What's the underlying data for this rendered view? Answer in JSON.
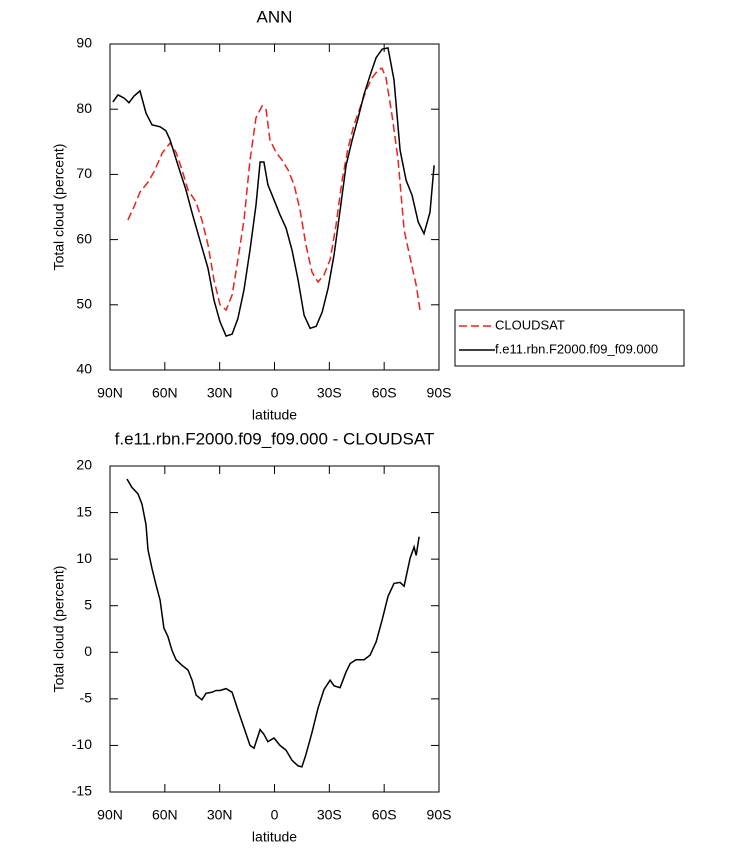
{
  "chart_data": [
    {
      "type": "line",
      "title": "ANN",
      "xlabel": "latitude",
      "ylabel": "Total cloud (percent)",
      "xlim": [
        90,
        -90
      ],
      "ylim": [
        40,
        90
      ],
      "xticks": [
        {
          "value": 90,
          "label": "90N"
        },
        {
          "value": 60,
          "label": "60N"
        },
        {
          "value": 30,
          "label": "30N"
        },
        0,
        {
          "value": -30,
          "label": "30S"
        },
        {
          "value": -60,
          "label": "60S"
        },
        {
          "value": -90,
          "label": "90S"
        }
      ],
      "yticks": [
        40,
        50,
        60,
        70,
        80,
        90
      ],
      "legend": "outside-right",
      "series": [
        {
          "name": "CLOUDSAT",
          "color": "#e8241c",
          "line_style": "dashed",
          "x": [
            80.2,
            76.9,
            73.6,
            69.2,
            65.9,
            61.4,
            57.2,
            53.9,
            50.6,
            47.3,
            43.0,
            39.7,
            36.4,
            33.1,
            29.8,
            26.5,
            23.2,
            20.0,
            16.7,
            13.4,
            10.1,
            6.8,
            4.6,
            2.5,
            -0.8,
            -4.1,
            -7.4,
            -10.7,
            -14.0,
            -17.2,
            -20.5,
            -23.8,
            -27.1,
            -30.4,
            -33.7,
            -37.0,
            -40.2,
            -43.5,
            -46.8,
            -50.1,
            -53.4,
            -56.6,
            -58.8,
            -61.0,
            -64.3,
            -67.6,
            -70.9,
            -74.2,
            -77.5,
            -79.6
          ],
          "values": [
            63.0,
            65.0,
            67.3,
            68.8,
            70.4,
            73.3,
            74.8,
            73.4,
            70.7,
            67.6,
            65.8,
            63.0,
            59.2,
            53.8,
            50.0,
            49.2,
            51.5,
            56.9,
            63.0,
            72.2,
            78.7,
            80.5,
            79.9,
            75.3,
            73.4,
            72.2,
            70.7,
            68.4,
            64.5,
            59.2,
            55.0,
            53.5,
            54.6,
            56.9,
            62.3,
            69.1,
            74.0,
            77.6,
            80.2,
            82.9,
            84.8,
            86.0,
            86.3,
            84.8,
            79.1,
            72.2,
            61.5,
            57.2,
            53.0,
            49.2
          ]
        },
        {
          "name": "f.e11.rbn.F2000.f09_f09.000",
          "color": "#000000",
          "line_style": "solid",
          "x": [
            88.4,
            85.6,
            82.3,
            79.6,
            76.9,
            73.6,
            70.3,
            67.0,
            62.6,
            59.4,
            57.2,
            52.8,
            48.4,
            45.1,
            40.8,
            36.4,
            33.1,
            29.8,
            26.5,
            23.2,
            20.0,
            16.7,
            13.4,
            10.1,
            7.9,
            5.8,
            3.6,
            0.3,
            -3.0,
            -6.3,
            -9.6,
            -12.9,
            -16.2,
            -19.5,
            -22.8,
            -26.1,
            -29.4,
            -32.6,
            -35.9,
            -39.2,
            -42.5,
            -45.8,
            -49.0,
            -52.3,
            -55.6,
            -58.9,
            -62.1,
            -65.4,
            -68.7,
            -72.0,
            -75.3,
            -78.6,
            -81.8,
            -85.1,
            -87.3
          ],
          "values": [
            81.1,
            82.2,
            81.7,
            81.0,
            82.0,
            82.8,
            79.4,
            77.6,
            77.3,
            76.7,
            75.3,
            71.4,
            67.6,
            64.1,
            59.9,
            55.6,
            50.7,
            47.4,
            45.2,
            45.5,
            47.9,
            52.3,
            58.4,
            65.3,
            71.9,
            71.9,
            68.4,
            66.1,
            63.8,
            61.8,
            58.4,
            53.8,
            48.4,
            46.4,
            46.7,
            48.9,
            52.6,
            57.7,
            64.5,
            71.4,
            75.3,
            78.7,
            82.3,
            85.2,
            87.9,
            89.2,
            89.4,
            84.5,
            73.7,
            69.1,
            66.8,
            62.7,
            60.9,
            64.2,
            71.4
          ]
        }
      ]
    },
    {
      "type": "line",
      "title": "f.e11.rbn.F2000.f09_f09.000 - CLOUDSAT",
      "xlabel": "latitude",
      "ylabel": "Total cloud (percent)",
      "xlim": [
        90,
        -90
      ],
      "ylim": [
        -15,
        20
      ],
      "xticks": [
        {
          "value": 90,
          "label": "90N"
        },
        {
          "value": 60,
          "label": "60N"
        },
        {
          "value": 30,
          "label": "30N"
        },
        0,
        {
          "value": -30,
          "label": "30S"
        },
        {
          "value": -60,
          "label": "60S"
        },
        {
          "value": -90,
          "label": "90S"
        }
      ],
      "yticks": [
        -15,
        -10,
        -5,
        0,
        5,
        10,
        15,
        20
      ],
      "color": "#000000",
      "x": [
        80.7,
        78.0,
        74.7,
        72.5,
        70.3,
        69.2,
        67.0,
        64.8,
        62.6,
        60.5,
        58.3,
        56.1,
        53.9,
        50.6,
        47.3,
        45.1,
        42.9,
        39.7,
        37.5,
        34.2,
        32.0,
        29.8,
        26.5,
        23.2,
        20.0,
        16.7,
        13.4,
        11.2,
        7.9,
        5.8,
        3.6,
        0.3,
        -3.0,
        -6.3,
        -9.6,
        -12.9,
        -15.0,
        -17.2,
        -20.5,
        -23.8,
        -27.1,
        -30.4,
        -32.6,
        -35.9,
        -39.2,
        -41.4,
        -44.6,
        -49.0,
        -52.3,
        -55.6,
        -58.9,
        -62.1,
        -65.4,
        -68.7,
        -70.9,
        -74.2,
        -76.4,
        -77.5,
        -79.1
      ],
      "values": [
        18.6,
        17.7,
        17.0,
        15.9,
        13.7,
        11.0,
        9.0,
        7.2,
        5.6,
        2.6,
        1.7,
        0.2,
        -0.8,
        -1.4,
        -1.9,
        -3.0,
        -4.6,
        -5.1,
        -4.4,
        -4.3,
        -4.1,
        -4.1,
        -3.9,
        -4.3,
        -6.2,
        -8.1,
        -10.0,
        -10.3,
        -8.3,
        -8.8,
        -9.6,
        -9.2,
        -10.0,
        -10.5,
        -11.6,
        -12.2,
        -12.3,
        -11.0,
        -8.6,
        -6.0,
        -4.0,
        -3.0,
        -3.6,
        -3.8,
        -2.1,
        -1.2,
        -0.8,
        -0.8,
        -0.3,
        1.1,
        3.5,
        6.0,
        7.4,
        7.5,
        7.1,
        10.1,
        11.3,
        10.4,
        12.4
      ]
    }
  ]
}
